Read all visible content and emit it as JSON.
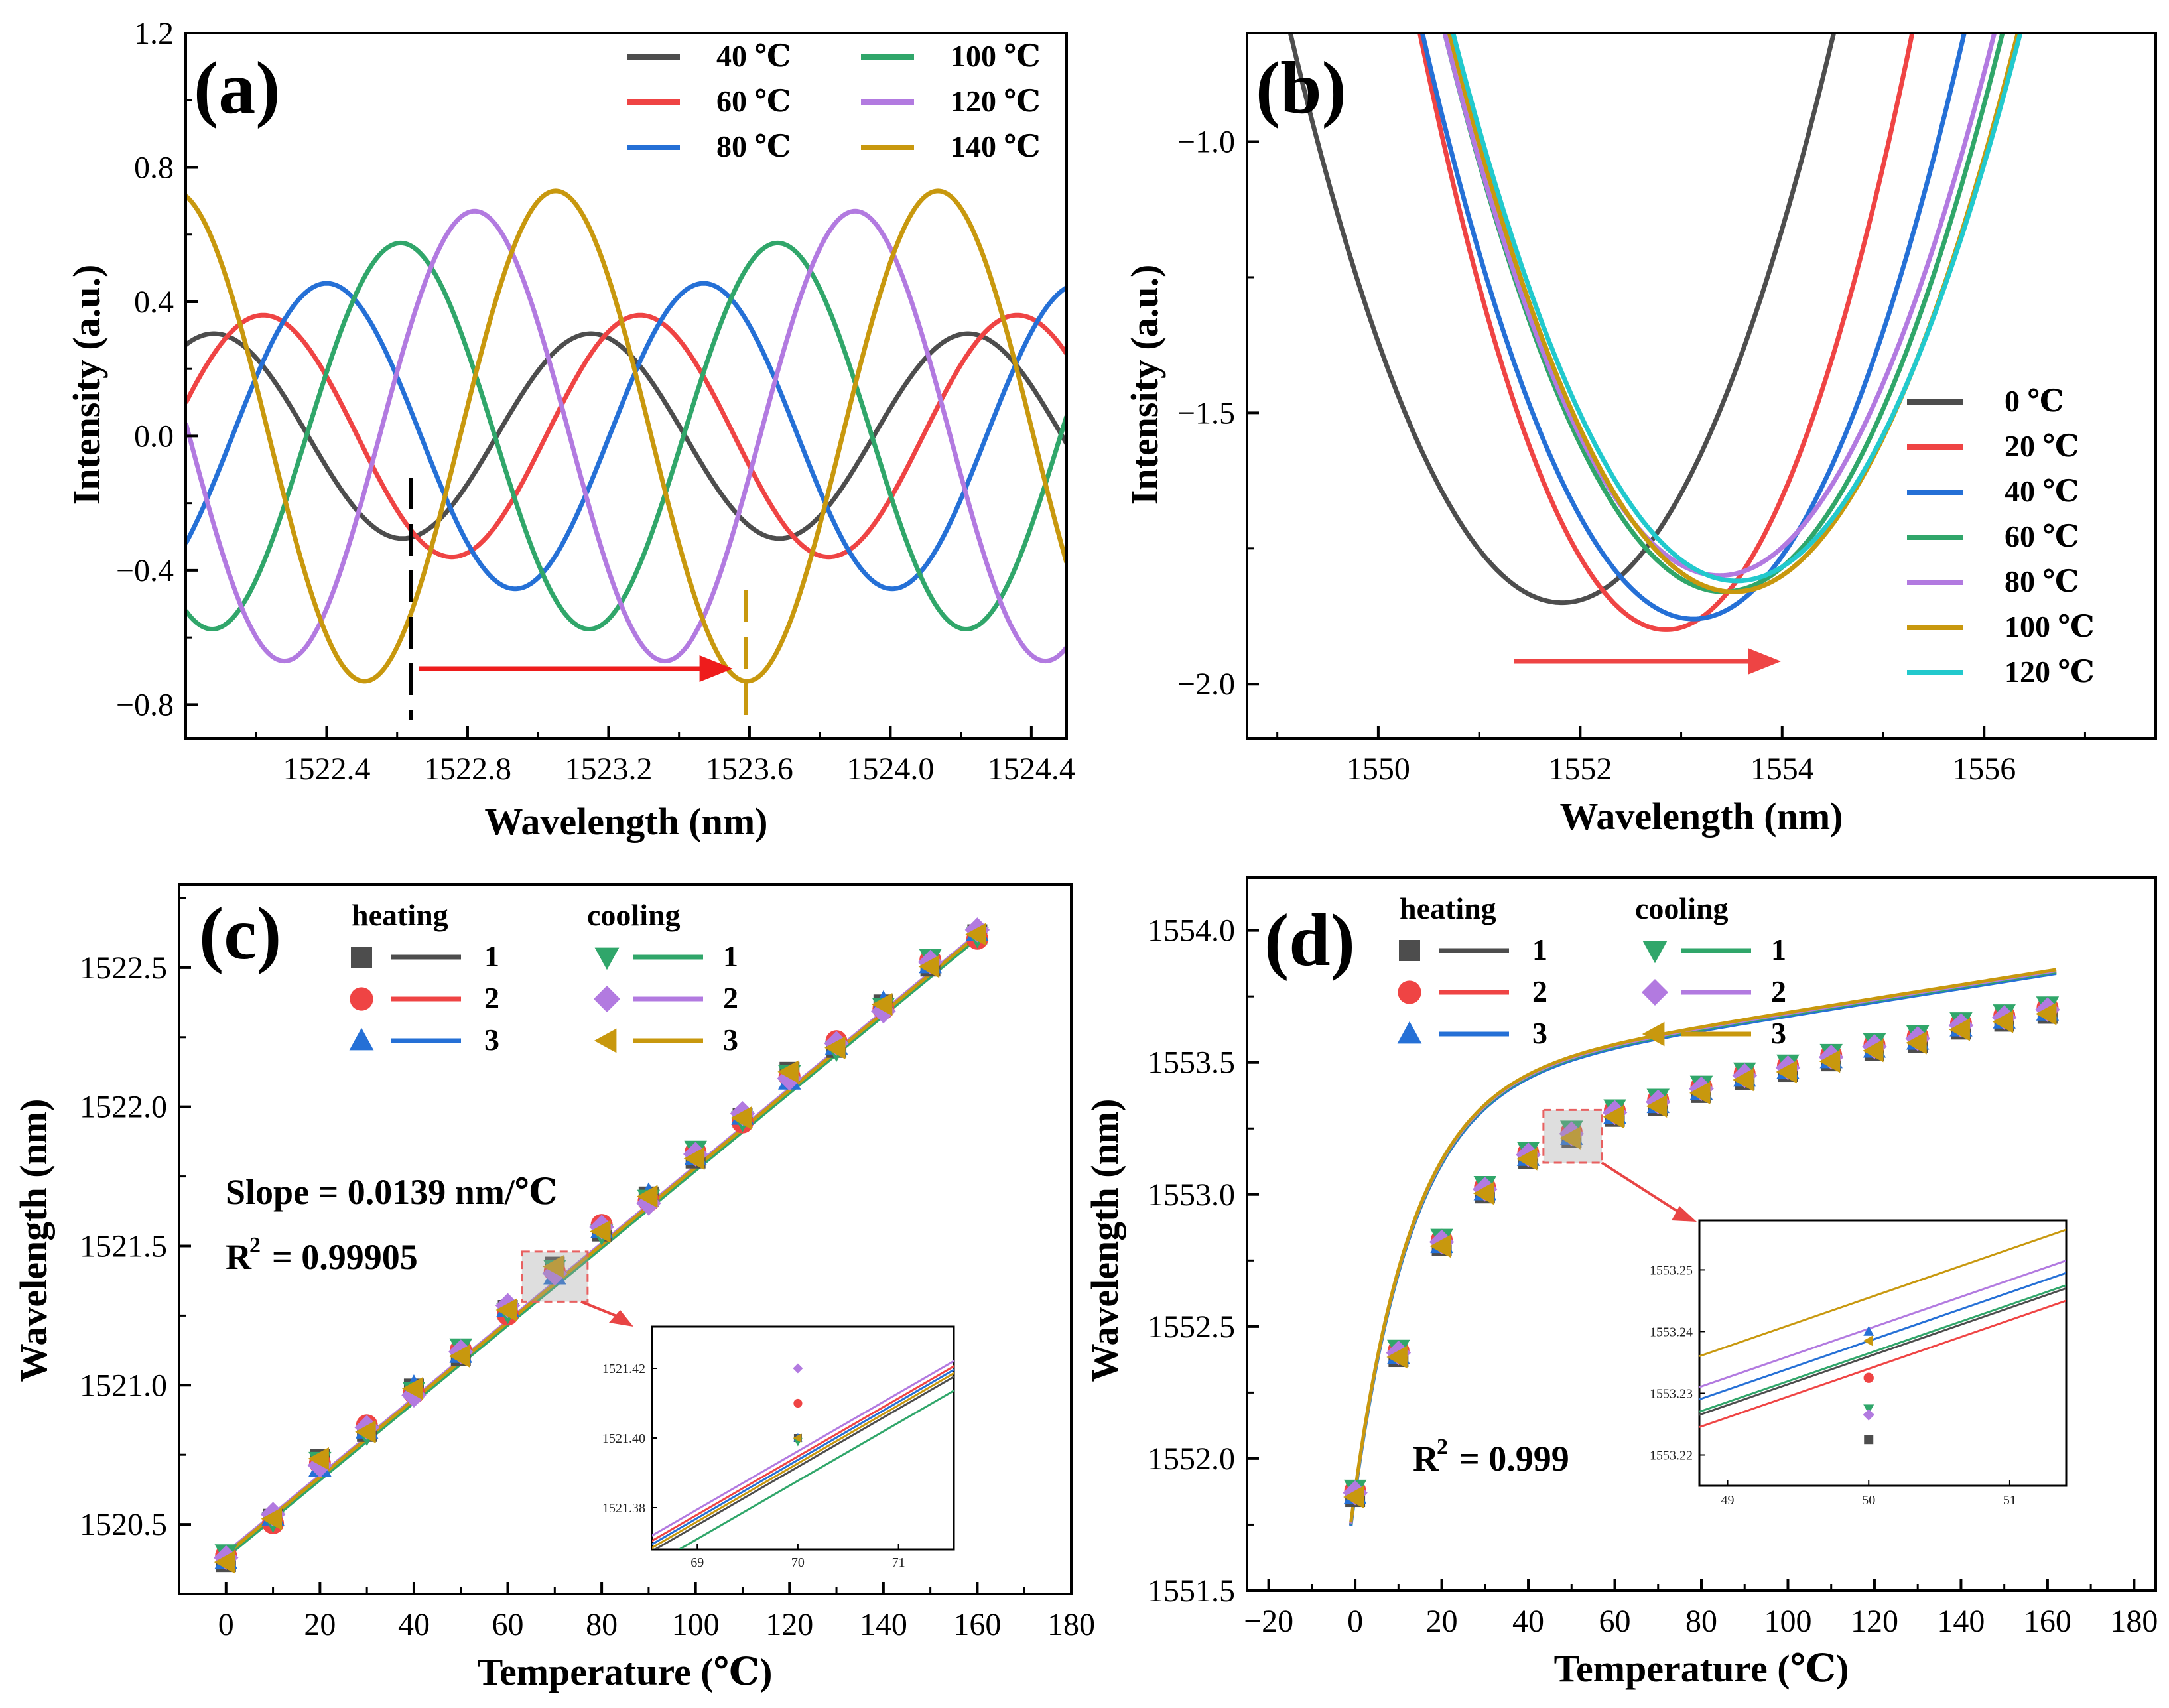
{
  "chart_data": [
    {
      "panel": "(a)",
      "type": "line",
      "xlabel": "Wavelength (nm)",
      "ylabel": "Intensity (a.u.)",
      "xlim": [
        1522.0,
        1524.5
      ],
      "ylim": [
        -0.9,
        1.2
      ],
      "xticks": [
        "1522.4",
        "1522.8",
        "1523.2",
        "1523.6",
        "1524.0",
        "1524.4"
      ],
      "yticks": [
        "−0.8",
        "−0.4",
        "0.0",
        "0.4",
        "0.8",
        "1.2"
      ],
      "series": [
        {
          "name": "40 ℃",
          "color": "#4d4d4d",
          "amplitude": 0.305,
          "period": 1.07,
          "phase_peak": 1522.08
        },
        {
          "name": "60 ℃",
          "color": "#ef4444",
          "amplitude": 0.36,
          "period": 1.07,
          "phase_peak": 1522.22
        },
        {
          "name": "80 ℃",
          "color": "#2570d6",
          "amplitude": 0.455,
          "period": 1.07,
          "phase_peak": 1522.4
        },
        {
          "name": "100 ℃",
          "color": "#30a66a",
          "amplitude": 0.575,
          "period": 1.07,
          "phase_peak": 1522.61
        },
        {
          "name": "120 ℃",
          "color": "#b27ae0",
          "amplitude": 0.67,
          "period": 1.08,
          "phase_peak": 1522.82
        },
        {
          "name": "140 ℃",
          "color": "#c8980e",
          "amplitude": 0.73,
          "period": 1.085,
          "phase_peak": 1523.05
        }
      ],
      "markers": [
        {
          "x": 1522.64,
          "color": "#000000"
        },
        {
          "x": 1523.59,
          "color": "#c8980e"
        }
      ]
    },
    {
      "panel": "(b)",
      "type": "line",
      "xlabel": "Wavelength (nm)",
      "ylabel": "Intensity (a.u.)",
      "xlim": [
        1548.7,
        1557.7
      ],
      "ylim": [
        -2.1,
        -0.8
      ],
      "xticks": [
        "1550",
        "1552",
        "1554",
        "1556"
      ],
      "yticks": [
        "−1.0",
        "−1.5",
        "−2.0"
      ],
      "series": [
        {
          "name": "0 ℃",
          "color": "#4d4d4d",
          "center": 1551.82,
          "min": -1.85,
          "curv": 0.145
        },
        {
          "name": "20 ℃",
          "color": "#ef4444",
          "center": 1552.85,
          "min": -1.9,
          "curv": 0.185
        },
        {
          "name": "40 ℃",
          "color": "#2570d6",
          "center": 1553.12,
          "min": -1.88,
          "curv": 0.15
        },
        {
          "name": "60 ℃",
          "color": "#30a66a",
          "center": 1553.42,
          "min": -1.83,
          "curv": 0.135
        },
        {
          "name": "80 ℃",
          "color": "#b27ae0",
          "center": 1553.38,
          "min": -1.8,
          "curv": 0.135
        },
        {
          "name": "100 ℃",
          "color": "#c8980e",
          "center": 1553.52,
          "min": -1.83,
          "curv": 0.13
        },
        {
          "name": "120 ℃",
          "color": "#22c9cd",
          "center": 1553.55,
          "min": -1.81,
          "curv": 0.128
        }
      ]
    },
    {
      "panel": "(c)",
      "type": "scatter",
      "xlabel": "Temperature (℃)",
      "ylabel": "Wavelength (nm)",
      "xlim": [
        -10,
        180
      ],
      "ylim": [
        1520.25,
        1522.8
      ],
      "xticks": [
        "0",
        "20",
        "40",
        "60",
        "80",
        "100",
        "120",
        "140",
        "160",
        "180"
      ],
      "yticks": [
        "1520.5",
        "1521.0",
        "1521.5",
        "1522.0",
        "1522.5"
      ],
      "x": [
        0,
        10,
        20,
        30,
        40,
        50,
        60,
        70,
        80,
        90,
        100,
        110,
        120,
        130,
        140,
        150,
        160
      ],
      "y": [
        1520.38,
        1520.52,
        1520.72,
        1520.84,
        1520.98,
        1521.12,
        1521.27,
        1521.41,
        1521.56,
        1521.67,
        1521.83,
        1521.96,
        1522.11,
        1522.22,
        1522.36,
        1522.52,
        1522.62
      ],
      "fit": {
        "slope": 0.0139,
        "intercept": 1520.39
      },
      "annotations": [
        "Slope = 0.0139 nm/℃",
        "R"
      ],
      "r2_value": "= 0.99905",
      "inset": {
        "xticks": [
          "69",
          "70",
          "71"
        ],
        "yticks": [
          "1521.42",
          "1521.40",
          "1521.38"
        ]
      }
    },
    {
      "panel": "(d)",
      "type": "scatter",
      "xlabel": "Temperature (℃)",
      "ylabel": "Wavelength (nm)",
      "xlim": [
        -25,
        185
      ],
      "ylim": [
        1551.5,
        1554.2
      ],
      "xticks": [
        "−20",
        "0",
        "20",
        "40",
        "60",
        "80",
        "100",
        "120",
        "140",
        "160",
        "180"
      ],
      "yticks": [
        "1551.5",
        "1552.0",
        "1552.5",
        "1553.0",
        "1553.5",
        "1554.0"
      ],
      "x": [
        0,
        10,
        20,
        30,
        40,
        50,
        60,
        70,
        80,
        90,
        100,
        110,
        120,
        130,
        140,
        150,
        160
      ],
      "y": [
        1551.87,
        1552.4,
        1552.82,
        1553.02,
        1553.15,
        1553.23,
        1553.31,
        1553.35,
        1553.4,
        1553.45,
        1553.48,
        1553.52,
        1553.56,
        1553.59,
        1553.64,
        1553.67,
        1553.7
      ],
      "annotations": [
        "R"
      ],
      "r2_value": "= 0.999",
      "inset": {
        "xticks": [
          "49",
          "50",
          "51"
        ],
        "yticks": [
          "1553.25",
          "1553.24",
          "1553.23",
          "1553.22"
        ]
      }
    }
  ],
  "legend_cd": {
    "heating": "heating",
    "cooling": "cooling",
    "numbers": [
      "1",
      "2",
      "3"
    ],
    "heating_colors": [
      "#4d4d4d",
      "#ef4444",
      "#2570d6"
    ],
    "cooling_colors": [
      "#30a66a",
      "#b27ae0",
      "#c8980e"
    ]
  },
  "r2_superscript": "2"
}
